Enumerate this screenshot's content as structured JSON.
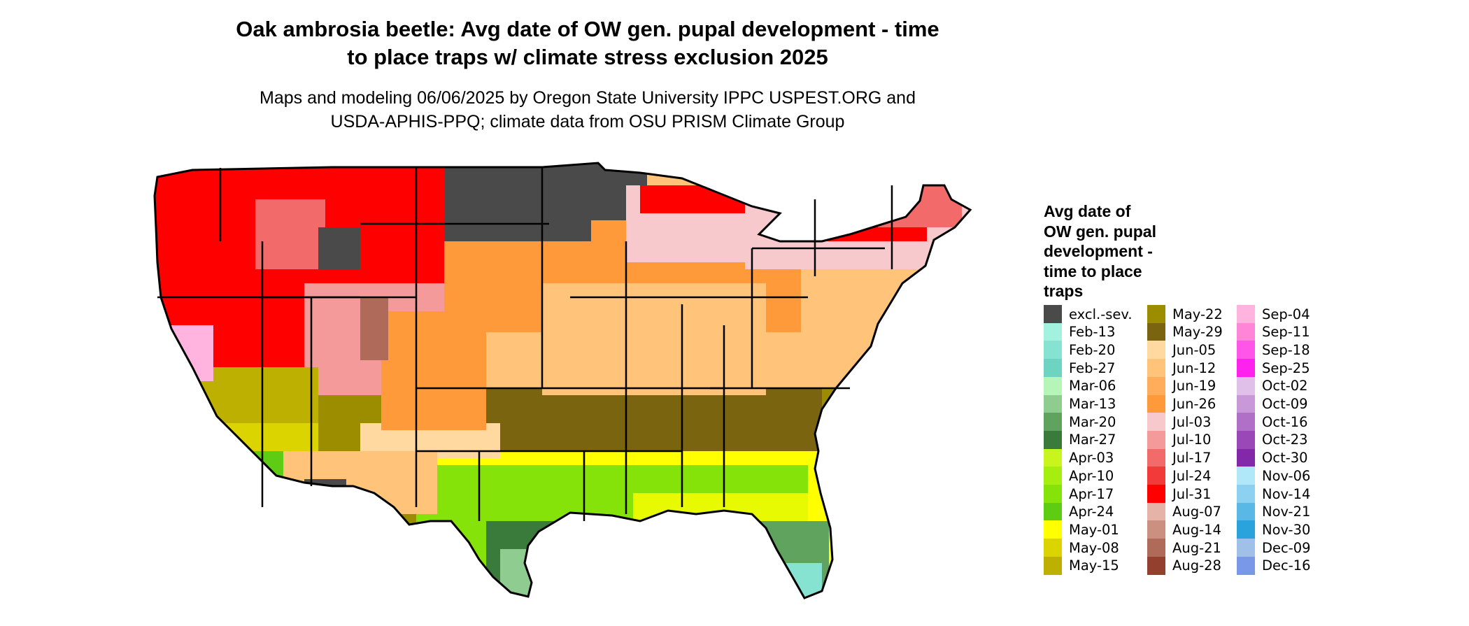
{
  "title_line1": "Oak ambrosia beetle: Avg date of OW gen. pupal development - time",
  "title_line2": "to place traps w/ climate stress exclusion 2025",
  "subtitle_line1": "Maps and modeling 06/06/2025 by Oregon State University IPPC USPEST.ORG and",
  "subtitle_line2": "USDA-APHIS-PPQ; climate data from OSU PRISM Climate Group",
  "legend": {
    "title_lines": [
      "Avg date of",
      "OW gen. pupal",
      "development -",
      "time to place",
      "traps"
    ],
    "columns": [
      [
        {
          "label": "excl.-sev.",
          "color": "#4a4a4a"
        },
        {
          "label": "Feb-13",
          "color": "#a3f2e0"
        },
        {
          "label": "Feb-20",
          "color": "#87e3d1"
        },
        {
          "label": "Feb-27",
          "color": "#6dd4c2"
        },
        {
          "label": "Mar-06",
          "color": "#b5f5b8"
        },
        {
          "label": "Mar-13",
          "color": "#8fcc8f"
        },
        {
          "label": "Mar-20",
          "color": "#5fa35f"
        },
        {
          "label": "Mar-27",
          "color": "#3a7a3a"
        },
        {
          "label": "Apr-03",
          "color": "#c8f51e"
        },
        {
          "label": "Apr-10",
          "color": "#a6ee10"
        },
        {
          "label": "Apr-17",
          "color": "#86e30a"
        },
        {
          "label": "Apr-24",
          "color": "#5fcc14"
        },
        {
          "label": "May-01",
          "color": "#ffff00"
        },
        {
          "label": "May-08",
          "color": "#dcd400"
        },
        {
          "label": "May-15",
          "color": "#bdb000"
        }
      ],
      [
        {
          "label": "May-22",
          "color": "#9c8c00"
        },
        {
          "label": "May-29",
          "color": "#7a6410"
        },
        {
          "label": "Jun-05",
          "color": "#ffd9a0"
        },
        {
          "label": "Jun-12",
          "color": "#ffc37a"
        },
        {
          "label": "Jun-19",
          "color": "#ffad5a"
        },
        {
          "label": "Jun-26",
          "color": "#ff9a3a"
        },
        {
          "label": "Jul-03",
          "color": "#f7c8cc"
        },
        {
          "label": "Jul-10",
          "color": "#f59a9a"
        },
        {
          "label": "Jul-17",
          "color": "#f26a6a"
        },
        {
          "label": "Jul-24",
          "color": "#f23a3a"
        },
        {
          "label": "Jul-31",
          "color": "#ff0000"
        },
        {
          "label": "Aug-07",
          "color": "#e6b3a8"
        },
        {
          "label": "Aug-14",
          "color": "#cc9080"
        },
        {
          "label": "Aug-21",
          "color": "#b06a5a"
        },
        {
          "label": "Aug-28",
          "color": "#93402f"
        }
      ],
      [
        {
          "label": "Sep-04",
          "color": "#ffb3df"
        },
        {
          "label": "Sep-11",
          "color": "#ff85d8"
        },
        {
          "label": "Sep-18",
          "color": "#ff55e8"
        },
        {
          "label": "Sep-25",
          "color": "#ff22ee"
        },
        {
          "label": "Oct-02",
          "color": "#e0c0e8"
        },
        {
          "label": "Oct-09",
          "color": "#c898d8"
        },
        {
          "label": "Oct-16",
          "color": "#b070c8"
        },
        {
          "label": "Oct-23",
          "color": "#9a48b8"
        },
        {
          "label": "Oct-30",
          "color": "#8228a8"
        },
        {
          "label": "Nov-06",
          "color": "#b0e8fa"
        },
        {
          "label": "Nov-14",
          "color": "#8cd2f0"
        },
        {
          "label": "Nov-21",
          "color": "#5ab8e6"
        },
        {
          "label": "Nov-30",
          "color": "#2aa2dc"
        },
        {
          "label": "Dec-09",
          "color": "#a0c0e8"
        },
        {
          "label": "Dec-16",
          "color": "#7a98e8"
        }
      ]
    ]
  }
}
